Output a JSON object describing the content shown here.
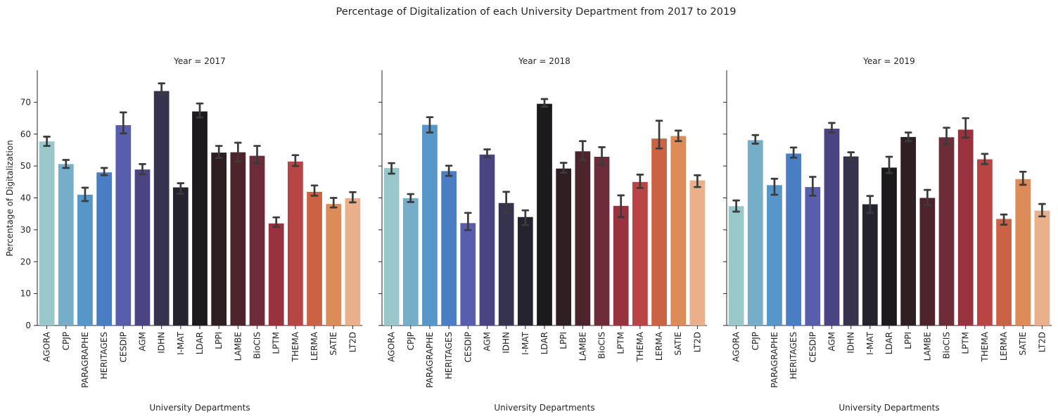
{
  "chart_data": {
    "type": "bar",
    "title": "Percentage of Digitalization of each University Department from 2017 to 2019",
    "xlabel": "University Departments",
    "ylabel": "Percentage of Digitalization",
    "ylim": [
      0,
      80
    ],
    "yticks": [
      0,
      10,
      20,
      30,
      40,
      50,
      60,
      70
    ],
    "categories": [
      "AGORA",
      "CPJP",
      "PARAGRAPHE",
      "HERITAGES",
      "CESDIP",
      "AGM",
      "IDHN",
      "I-MAT",
      "LDAR",
      "LPPI",
      "LAMBE",
      "BioCIS",
      "LPTM",
      "THEMA",
      "LERMA",
      "SATIE",
      "LT2D"
    ],
    "colors": [
      "#9ac8ca",
      "#76aec9",
      "#5696c8",
      "#4a7ec4",
      "#585dae",
      "#4a4482",
      "#36334f",
      "#25242e",
      "#1c1a1c",
      "#2f1e22",
      "#4d232c",
      "#6e2b38",
      "#99323f",
      "#b84444",
      "#cc6244",
      "#de8b5a",
      "#eab08b"
    ],
    "grid": false,
    "panels": [
      {
        "title": "Year = 2017",
        "values": [
          57.7,
          50.6,
          41.0,
          48.0,
          62.8,
          48.9,
          73.5,
          43.3,
          67.1,
          54.2,
          54.3,
          53.2,
          32.0,
          51.4,
          41.9,
          38.1,
          39.9
        ],
        "err_low": [
          56.3,
          49.4,
          39.0,
          47.1,
          60.2,
          47.4,
          72.3,
          41.3,
          65.2,
          52.5,
          51.4,
          50.8,
          30.9,
          50.0,
          40.7,
          37.0,
          38.6
        ],
        "err_high": [
          59.2,
          51.9,
          43.2,
          49.4,
          66.8,
          50.6,
          75.9,
          44.6,
          69.6,
          56.3,
          57.3,
          56.3,
          33.9,
          53.4,
          43.9,
          40.0,
          41.8
        ]
      },
      {
        "title": "Year = 2018",
        "values": [
          49.4,
          39.9,
          62.9,
          48.4,
          32.1,
          53.6,
          38.4,
          34.0,
          69.5,
          49.2,
          54.6,
          52.9,
          37.5,
          45.0,
          58.6,
          59.4,
          45.5
        ],
        "err_low": [
          47.6,
          38.7,
          60.5,
          46.9,
          29.9,
          52.8,
          35.2,
          31.5,
          68.6,
          47.9,
          51.9,
          50.3,
          34.0,
          43.1,
          55.5,
          57.8,
          43.4
        ],
        "err_high": [
          50.9,
          41.2,
          65.3,
          50.1,
          35.3,
          55.2,
          41.9,
          36.1,
          71.0,
          51.0,
          57.8,
          55.9,
          40.8,
          47.3,
          64.2,
          61.1,
          47.1
        ]
      },
      {
        "title": "Year = 2019",
        "values": [
          37.4,
          58.1,
          44.0,
          53.9,
          43.4,
          61.7,
          53.0,
          38.0,
          49.5,
          59.1,
          40.0,
          59.0,
          61.4,
          52.1,
          33.4,
          45.9,
          36.0
        ],
        "err_low": [
          35.7,
          57.0,
          41.0,
          52.6,
          40.7,
          60.5,
          52.0,
          35.3,
          47.8,
          57.8,
          37.7,
          56.8,
          58.9,
          50.6,
          31.6,
          44.1,
          34.2
        ],
        "err_high": [
          39.2,
          59.7,
          46.0,
          55.8,
          46.6,
          63.5,
          54.3,
          40.6,
          52.9,
          60.5,
          42.5,
          62.0,
          65.0,
          53.8,
          34.8,
          48.2,
          38.1
        ]
      }
    ]
  }
}
